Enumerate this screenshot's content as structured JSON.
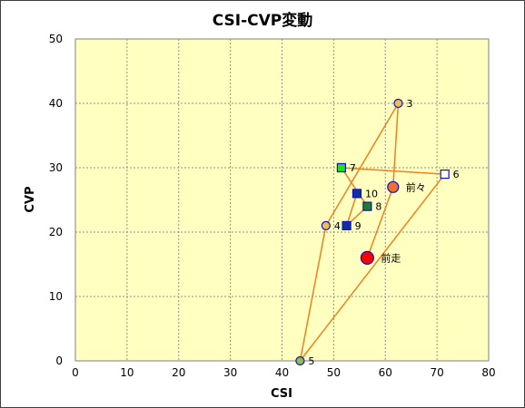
{
  "chart_data": {
    "type": "scatter",
    "title": "CSI-CVP変動",
    "xlabel": "CSI",
    "ylabel": "CVP",
    "xlim": [
      0,
      80
    ],
    "ylim": [
      0,
      50
    ],
    "xticks": [
      0,
      10,
      20,
      30,
      40,
      50,
      60,
      70,
      80
    ],
    "yticks": [
      0,
      10,
      20,
      30,
      40,
      50
    ],
    "grid": true,
    "plot_background": "#FFFFC0",
    "line_color": "#F08020",
    "points": [
      {
        "label": "前走",
        "x": 56.5,
        "y": 16,
        "marker": "circle-large",
        "fill": "#FF0000",
        "stroke": "#1010C0"
      },
      {
        "label": "前々",
        "x": 61.5,
        "y": 27,
        "marker": "circle-medium",
        "fill": "#F07030",
        "stroke": "#1010C0"
      },
      {
        "label": "3",
        "x": 62.5,
        "y": 40,
        "marker": "circle",
        "fill": "#F0C040",
        "stroke": "#1010C0"
      },
      {
        "label": "4",
        "x": 48.5,
        "y": 21,
        "marker": "circle",
        "fill": "#F0C040",
        "stroke": "#1010C0"
      },
      {
        "label": "5",
        "x": 43.5,
        "y": 0,
        "marker": "circle",
        "fill": "#90C040",
        "stroke": "#1010C0"
      },
      {
        "label": "6",
        "x": 71.5,
        "y": 29,
        "marker": "square",
        "fill": "#FFFFFF",
        "stroke": "#1010C0"
      },
      {
        "label": "7",
        "x": 51.5,
        "y": 30,
        "marker": "square",
        "fill": "#20E020",
        "stroke": "#1010C0"
      },
      {
        "label": "8",
        "x": 56.5,
        "y": 24,
        "marker": "square",
        "fill": "#208020",
        "stroke": "#1010C0"
      },
      {
        "label": "9",
        "x": 52.5,
        "y": 21,
        "marker": "square",
        "fill": "#1030A0",
        "stroke": "#1010C0"
      },
      {
        "label": "10",
        "x": 54.5,
        "y": 26,
        "marker": "square",
        "fill": "#1030A0",
        "stroke": "#1010C0"
      }
    ]
  }
}
